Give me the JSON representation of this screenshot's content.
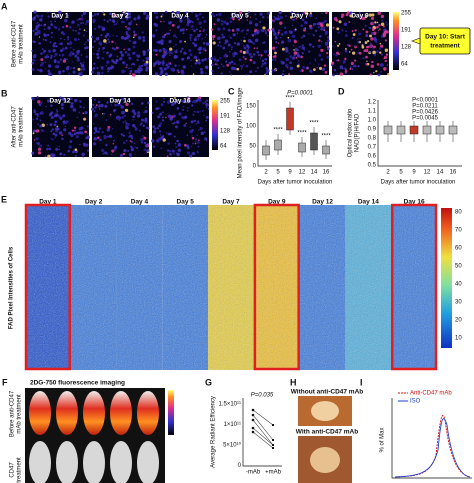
{
  "panels": {
    "A": {
      "label": "A",
      "side": [
        "Before anti-CD47",
        "mAb treatment"
      ],
      "days": [
        "Day 1",
        "Day 2",
        "Day 4",
        "Day 5",
        "Day 7",
        "Day 9"
      ],
      "scale": [
        "255",
        "191",
        "128",
        "64"
      ],
      "callout": [
        "Day 10: Start",
        "treatment"
      ]
    },
    "B": {
      "label": "B",
      "side": [
        "After anti-CD47",
        "mAb treatment"
      ],
      "days": [
        "Day 12",
        "Day 14",
        "Day 16"
      ],
      "scale": [
        "255",
        "191",
        "128",
        "64"
      ]
    },
    "C": {
      "label": "C",
      "ylabel": [
        "Mean pixel intensity of FAD/image"
      ],
      "yticks": [
        "150",
        "100",
        "50",
        "0"
      ],
      "xticks": [
        "2",
        "5",
        "9",
        "12",
        "14",
        "16"
      ],
      "xlabel": "Days after tumor inoculation",
      "p": "P=0.0001",
      "stars": [
        "****",
        "****",
        "****",
        "****",
        "****"
      ]
    },
    "D": {
      "label": "D",
      "ylabel": [
        "Optical redox ratio",
        "NAD(P)H/FAD"
      ],
      "yticks": [
        "1.2",
        "1.1",
        "1.0",
        "0.9",
        "0.8",
        "0.7",
        "0.6",
        "0.5"
      ],
      "xticks": [
        "2",
        "5",
        "9",
        "12",
        "14",
        "16"
      ],
      "xlabel": "Days after tumor inoculation",
      "p": [
        "P<0.0001",
        "P=0.0211",
        "P=0.0426",
        "P=0.0045"
      ]
    },
    "E": {
      "label": "E",
      "ylabel": "FAD Pixel Intensities of Cells",
      "days": [
        "Day 1",
        "Day 2",
        "Day 4",
        "Day 5",
        "Day 7",
        "Day 9",
        "Day 12",
        "Day 14",
        "Day 16"
      ],
      "scale": [
        "80",
        "70",
        "60",
        "50",
        "40",
        "30",
        "20",
        "10"
      ]
    },
    "F": {
      "label": "F",
      "title": "2DG-750 fluorescence imaging",
      "side": [
        "Before anti-CD47",
        "mAb treatment"
      ],
      "side2": [
        "CD47",
        "treatment"
      ]
    },
    "G": {
      "label": "G",
      "ylabel": "Average Radiant Efficiency",
      "yticks": [
        "1.5×10¹¹",
        "1×10¹¹",
        "5×10¹⁰",
        "0"
      ],
      "xticks": [
        "-mAb",
        "+mAb"
      ],
      "p": "P=0.035"
    },
    "H": {
      "label": "H",
      "top": "Without anti-CD47 mAb",
      "bottom": "With anti-CD47 mAb"
    },
    "I": {
      "label": "I",
      "legend": [
        "Anti-CD47 mAb",
        "ISO"
      ],
      "ylabel": "% of Max"
    }
  }
}
